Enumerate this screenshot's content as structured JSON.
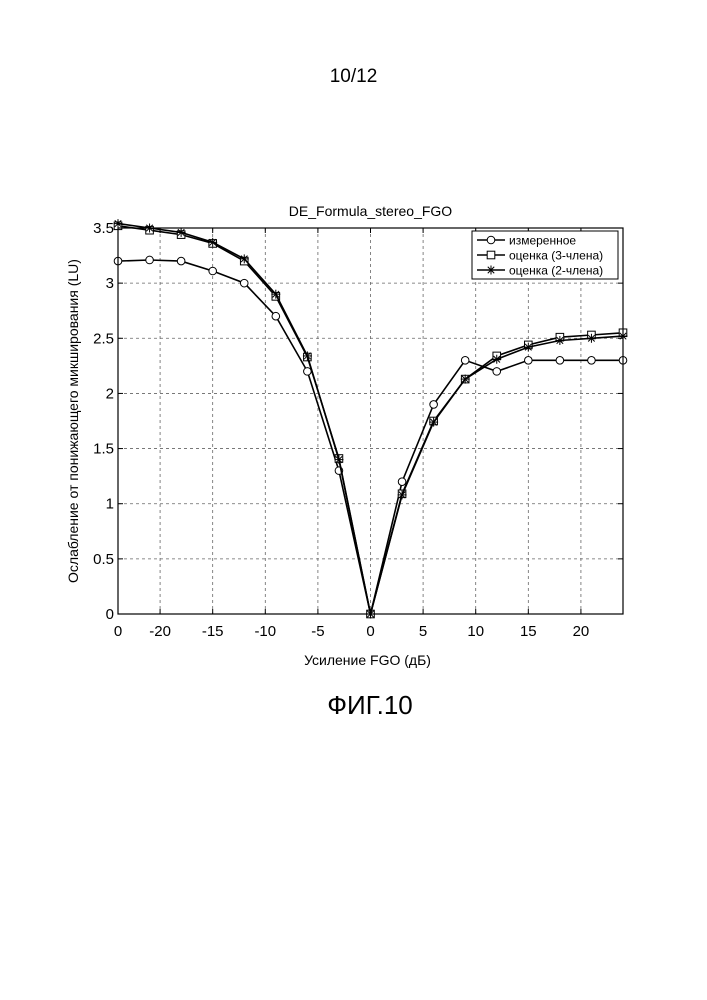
{
  "page": {
    "number": "10/12",
    "caption": "ФИГ.10"
  },
  "chart_data": {
    "type": "line",
    "title": "DE_Formula_stereo_FGO",
    "xlabel": "Усиление FGO (дБ)",
    "ylabel": "Ослабление от понижающего микширования (LU)",
    "xlim": [
      -24,
      24
    ],
    "ylim": [
      0,
      3.5
    ],
    "xticks": [
      -20,
      -15,
      -10,
      -5,
      0,
      5,
      10,
      15,
      20
    ],
    "yticks": [
      0,
      0.5,
      1,
      1.5,
      2,
      2.5,
      3,
      3.5
    ],
    "xtick_labels": [
      "-20",
      "-15",
      "-10",
      "-5",
      "0",
      "5",
      "10",
      "15",
      "20"
    ],
    "ytick_labels": [
      "0",
      "0.5",
      "1",
      "1.5",
      "2",
      "2.5",
      "3",
      "3.5"
    ],
    "xlim_label_left": "0",
    "grid": true,
    "legend_position": "top-right",
    "series": [
      {
        "name": "измеренное",
        "marker": "circle",
        "x": [
          -24,
          -21,
          -18,
          -15,
          -12,
          -9,
          -6,
          -3,
          0,
          3,
          6,
          9,
          12,
          15,
          18,
          21,
          24
        ],
        "y": [
          3.2,
          3.21,
          3.2,
          3.11,
          3.0,
          2.7,
          2.2,
          1.3,
          0.0,
          1.2,
          1.9,
          2.3,
          2.2,
          2.3,
          2.3,
          2.3,
          2.3
        ]
      },
      {
        "name": "оценка (3-члена)",
        "marker": "square",
        "x": [
          -24,
          -21,
          -18,
          -15,
          -12,
          -9,
          -6,
          -3,
          0,
          3,
          6,
          9,
          12,
          15,
          18,
          21,
          24
        ],
        "y": [
          3.52,
          3.48,
          3.44,
          3.36,
          3.2,
          2.88,
          2.33,
          1.41,
          0.0,
          1.09,
          1.75,
          2.13,
          2.34,
          2.44,
          2.51,
          2.53,
          2.55
        ]
      },
      {
        "name": "оценка (2-члена)",
        "marker": "star",
        "x": [
          -24,
          -21,
          -18,
          -15,
          -12,
          -9,
          -6,
          -3,
          0,
          3,
          6,
          9,
          12,
          15,
          18,
          21,
          24
        ],
        "y": [
          3.54,
          3.5,
          3.46,
          3.37,
          3.22,
          2.9,
          2.34,
          1.4,
          0.0,
          1.08,
          1.74,
          2.13,
          2.31,
          2.42,
          2.48,
          2.5,
          2.52
        ]
      }
    ]
  }
}
